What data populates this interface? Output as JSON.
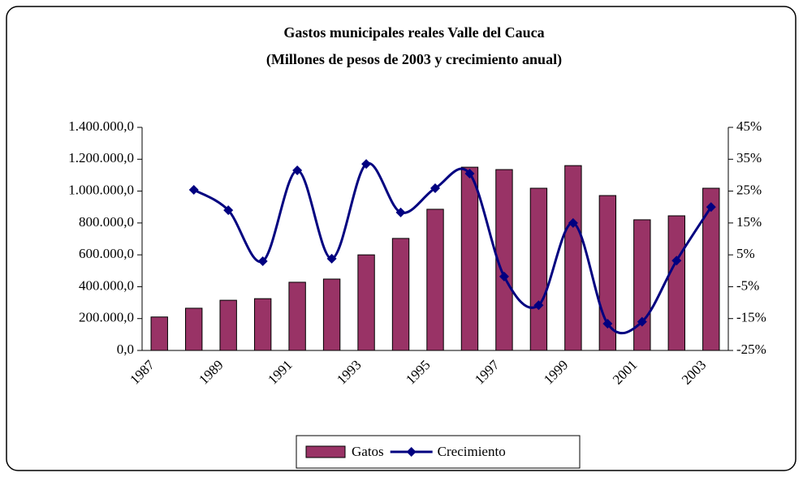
{
  "chart_data": {
    "type": "bar",
    "title": "Gastos municipales reales Valle del Cauca",
    "subtitle": "(Millones de pesos de 2003 y crecimiento anual)",
    "categories": [
      "1987",
      null,
      "1989",
      null,
      "1991",
      null,
      "1993",
      null,
      "1995",
      null,
      "1997",
      null,
      "1999",
      null,
      "2001",
      null,
      "2003"
    ],
    "series": [
      {
        "name": "Gatos",
        "type": "bar",
        "color": "#993366",
        "values": [
          210000,
          265000,
          315000,
          325000,
          428000,
          448000,
          600000,
          703000,
          886000,
          1150000,
          1135000,
          1018000,
          1160000,
          972000,
          820000,
          845000,
          1018000
        ]
      },
      {
        "name": "Crecimiento",
        "type": "line",
        "axis": "y2",
        "color": "#000080",
        "smooth": true,
        "marker": "diamond",
        "values": [
          null,
          25.4,
          19,
          3,
          31.5,
          3.8,
          33.5,
          18.3,
          25.9,
          30.5,
          -1.8,
          -10.8,
          15,
          -16.6,
          -16,
          3.2,
          20
        ]
      }
    ],
    "ylim": [
      0,
      1400000
    ],
    "yticks": [
      {
        "value": 0,
        "label": "0,0"
      },
      {
        "value": 200000,
        "label": "200.000,0"
      },
      {
        "value": 400000,
        "label": "400.000,0"
      },
      {
        "value": 600000,
        "label": "600.000,0"
      },
      {
        "value": 800000,
        "label": "800.000,0"
      },
      {
        "value": 1000000,
        "label": "1.000.000,0"
      },
      {
        "value": 1200000,
        "label": "1.200.000,0"
      },
      {
        "value": 1400000,
        "label": "1.400.000,0"
      }
    ],
    "y2lim": [
      -25,
      45
    ],
    "y2ticks": [
      {
        "value": -25,
        "label": "-25%"
      },
      {
        "value": -15,
        "label": "-15%"
      },
      {
        "value": -5,
        "label": "-5%"
      },
      {
        "value": 5,
        "label": "5%"
      },
      {
        "value": 15,
        "label": "15%"
      },
      {
        "value": 25,
        "label": "25%"
      },
      {
        "value": 35,
        "label": "35%"
      },
      {
        "value": 45,
        "label": "45%"
      }
    ],
    "grid": false,
    "legend": "bottom"
  }
}
